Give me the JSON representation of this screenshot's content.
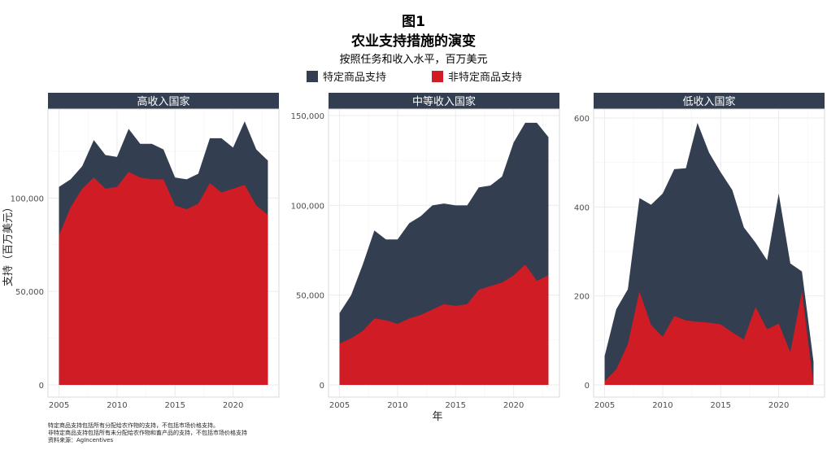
{
  "figure": {
    "title_line1": "图1",
    "title_line2": "农业支持措施的演变",
    "subtitle": "按照任务和收入水平，百万美元",
    "notes": [
      "特定商品支持包括所有分配给农作物的支持，不包括市场价格支持。",
      "非特定商品支持包括所有未分配给农作物和畜产品的支持，不包括市场价格支持",
      "资料来源：AgIncentives"
    ]
  },
  "colors": {
    "specific": "#333e50",
    "nonspecific": "#d01c25",
    "strip": "#333e50",
    "grid": "#ebebeb"
  },
  "chart_data": {
    "type": "area",
    "stacked": true,
    "xlabel": "年",
    "ylabel": "支持（百万美元）",
    "legend": {
      "position": "top",
      "items": [
        "特定商品支持",
        "非特定商品支持"
      ]
    },
    "years": [
      2005,
      2006,
      2007,
      2008,
      2009,
      2010,
      2011,
      2012,
      2013,
      2014,
      2015,
      2016,
      2017,
      2018,
      2019,
      2020,
      2021,
      2022,
      2023
    ],
    "x_ticks": [
      2005,
      2010,
      2015,
      2020
    ],
    "panels": [
      {
        "name": "高收入国家",
        "ylim": [
          0,
          150000
        ],
        "y_ticks": [
          0,
          50000,
          100000
        ],
        "y_tick_labels": [
          "0",
          "50,000",
          "100,000"
        ],
        "series": [
          {
            "name": "非特定商品支持",
            "values": [
              80000,
              95000,
              105000,
              111000,
              105000,
              106000,
              114000,
              111000,
              110000,
              110000,
              96000,
              94000,
              97000,
              108000,
              103000,
              105000,
              107000,
              96000,
              91000
            ]
          },
          {
            "name": "特定商品支持",
            "values": [
              26000,
              15000,
              12000,
              20000,
              18000,
              16000,
              23000,
              18000,
              19000,
              16000,
              15000,
              16000,
              16000,
              24000,
              29000,
              22000,
              34000,
              30000,
              29000
            ]
          }
        ]
      },
      {
        "name": "中等收入国家",
        "ylim": [
          0,
          150000
        ],
        "y_ticks": [
          0,
          50000,
          100000,
          150000
        ],
        "y_tick_labels": [
          "0",
          "50,000",
          "100,000",
          "150,000"
        ],
        "series": [
          {
            "name": "非特定商品支持",
            "values": [
              23000,
              26000,
              30000,
              37000,
              36000,
              34000,
              37000,
              39000,
              42000,
              45000,
              44000,
              45000,
              53000,
              55000,
              57000,
              61000,
              67000,
              58000,
              61000
            ]
          },
          {
            "name": "特定商品支持",
            "values": [
              17000,
              24000,
              37000,
              49000,
              45000,
              47000,
              53000,
              55000,
              58000,
              56000,
              56000,
              55000,
              57000,
              56000,
              59000,
              74000,
              79000,
              88000,
              77000
            ]
          }
        ]
      },
      {
        "name": "低收入国家",
        "ylim": [
          0,
          600
        ],
        "y_ticks": [
          0,
          200,
          400,
          600
        ],
        "y_tick_labels": [
          "0",
          "200",
          "400",
          "600"
        ],
        "series": [
          {
            "name": "非特定商品支持",
            "values": [
              8,
              35,
              92,
              210,
              135,
              108,
              155,
              145,
              142,
              140,
              136,
              118,
              102,
              175,
              125,
              138,
              73,
              210,
              0
            ]
          },
          {
            "name": "特定商品支持",
            "values": [
              57,
              135,
              123,
              210,
              270,
              322,
              330,
              342,
              447,
              382,
              342,
              320,
              252,
              145,
              155,
              292,
              200,
              45,
              52
            ]
          }
        ]
      }
    ]
  }
}
